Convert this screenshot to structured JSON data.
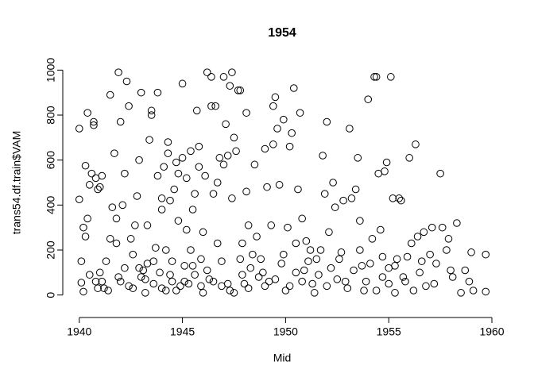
{
  "chart_data": {
    "type": "scatter",
    "title": "1954",
    "x_label": "Mid",
    "y_label": "trans54.df.train$VAM",
    "color": "#000000",
    "grid": false,
    "xlim": [
      1939.2,
      1960.5
    ],
    "xticks": [
      1940,
      1945,
      1950,
      1955,
      1960
    ],
    "ylim": [
      -40,
      1040
    ],
    "yticks": [
      0,
      200,
      400,
      600,
      800,
      1000
    ],
    "x": [
      1940.0,
      1940.0,
      1940.1,
      1940.1,
      1940.2,
      1940.2,
      1940.3,
      1940.3,
      1940.4,
      1940.4,
      1940.5,
      1940.5,
      1940.6,
      1940.7,
      1940.7,
      1940.8,
      1940.8,
      1940.9,
      1941.0,
      1941.0,
      1941.1,
      1941.2,
      1941.3,
      1941.5,
      1941.5,
      1941.6,
      1941.7,
      1941.8,
      1941.8,
      1941.9,
      1942.0,
      1942.0,
      1942.1,
      1942.2,
      1942.2,
      1942.3,
      1942.4,
      1942.5,
      1942.6,
      1942.6,
      1942.7,
      1942.8,
      1942.9,
      1943.0,
      1943.0,
      1943.1,
      1943.2,
      1943.3,
      1943.3,
      1943.4,
      1943.5,
      1943.5,
      1943.6,
      1943.7,
      1943.8,
      1943.8,
      1943.9,
      1944.0,
      1944.0,
      1944.1,
      1944.2,
      1944.2,
      1944.3,
      1944.3,
      1944.4,
      1944.5,
      1944.5,
      1944.6,
      1944.7,
      1944.8,
      1944.8,
      1944.9,
      1945.0,
      1945.0,
      1945.1,
      1945.2,
      1945.2,
      1945.3,
      1945.4,
      1945.4,
      1945.5,
      1945.6,
      1945.6,
      1945.7,
      1945.8,
      1945.8,
      1945.9,
      1946.0,
      1946.0,
      1946.1,
      1946.2,
      1946.3,
      1946.4,
      1946.4,
      1946.5,
      1946.6,
      1946.7,
      1946.7,
      1946.8,
      1946.9,
      1947.0,
      1947.0,
      1947.1,
      1947.2,
      1947.3,
      1947.3,
      1947.4,
      1947.4,
      1947.5,
      1947.6,
      1947.7,
      1947.8,
      1947.8,
      1947.9,
      1948.0,
      1948.1,
      1948.1,
      1948.2,
      1948.3,
      1948.5,
      1948.6,
      1948.7,
      1948.8,
      1949.0,
      1949.1,
      1949.2,
      1949.3,
      1949.4,
      1949.4,
      1949.5,
      1949.6,
      1949.7,
      1949.8,
      1949.9,
      1950.0,
      1950.1,
      1950.2,
      1950.3,
      1950.4,
      1950.5,
      1950.6,
      1950.7,
      1950.8,
      1950.9,
      1951.0,
      1951.2,
      1951.3,
      1951.5,
      1951.6,
      1951.8,
      1951.9,
      1952.0,
      1952.1,
      1952.3,
      1952.4,
      1952.6,
      1952.8,
      1952.9,
      1953.1,
      1953.2,
      1953.4,
      1953.5,
      1953.6,
      1953.7,
      1953.8,
      1954.0,
      1954.2,
      1954.3,
      1954.4,
      1954.5,
      1954.6,
      1954.7,
      1954.8,
      1954.9,
      1955.0,
      1955.1,
      1955.2,
      1955.3,
      1955.4,
      1955.5,
      1955.6,
      1955.8,
      1955.9,
      1956.0,
      1956.1,
      1956.3,
      1956.4,
      1956.5,
      1956.7,
      1956.8,
      1957.0,
      1957.1,
      1957.3,
      1957.5,
      1957.6,
      1957.9,
      1958.0,
      1958.1,
      1958.3,
      1958.5,
      1958.7,
      1958.9,
      1959.0,
      1959.1,
      1959.7,
      1959.7,
      1940.9,
      1941.1,
      1941.4,
      1941.9,
      1942.4,
      1942.9,
      1943.2,
      1943.6,
      1944.0,
      1944.4,
      1944.7,
      1945.1,
      1945.5,
      1945.9,
      1946.2,
      1946.5,
      1946.9,
      1947.2,
      1947.5,
      1947.9,
      1948.2,
      1948.4,
      1948.9,
      1949.0,
      1949.5,
      1949.9,
      1950.2,
      1950.5,
      1950.8,
      1951.1,
      1951.4,
      1951.7,
      1952.0,
      1952.2,
      1952.5,
      1952.7,
      1953.0,
      1953.3,
      1953.6,
      1953.9,
      1954.1,
      1954.4,
      1954.7,
      1955.0,
      1955.3,
      1955.7,
      1956.2,
      1956.6,
      1957.2,
      1957.8
    ],
    "values": [
      740,
      425,
      150,
      55,
      15,
      300,
      575,
      260,
      810,
      340,
      90,
      490,
      540,
      770,
      755,
      60,
      520,
      470,
      480,
      100,
      530,
      30,
      150,
      890,
      250,
      390,
      630,
      340,
      230,
      990,
      770,
      60,
      400,
      540,
      120,
      950,
      840,
      250,
      180,
      30,
      310,
      440,
      600,
      900,
      80,
      110,
      10,
      140,
      310,
      690,
      820,
      800,
      50,
      210,
      900,
      530,
      100,
      380,
      430,
      570,
      20,
      200,
      630,
      680,
      420,
      150,
      60,
      470,
      590,
      330,
      540,
      40,
      940,
      610,
      130,
      290,
      520,
      50,
      200,
      640,
      380,
      450,
      90,
      820,
      660,
      570,
      160,
      280,
      10,
      530,
      990,
      70,
      970,
      840,
      450,
      840,
      230,
      500,
      610,
      40,
      970,
      580,
      760,
      620,
      930,
      20,
      990,
      430,
      700,
      640,
      910,
      910,
      160,
      230,
      50,
      460,
      810,
      310,
      120,
      580,
      260,
      80,
      160,
      650,
      480,
      60,
      310,
      840,
      670,
      880,
      740,
      490,
      140,
      780,
      20,
      300,
      660,
      720,
      920,
      230,
      470,
      810,
      340,
      110,
      240,
      200,
      50,
      160,
      90,
      620,
      450,
      770,
      280,
      500,
      390,
      160,
      420,
      60,
      740,
      430,
      470,
      610,
      330,
      130,
      20,
      870,
      250,
      970,
      970,
      540,
      290,
      80,
      550,
      590,
      120,
      970,
      430,
      10,
      160,
      430,
      420,
      60,
      170,
      610,
      230,
      670,
      260,
      100,
      280,
      40,
      180,
      300,
      140,
      540,
      300,
      250,
      110,
      80,
      320,
      10,
      110,
      60,
      190,
      20,
      15,
      180,
      30,
      60,
      20,
      80,
      40,
      120,
      70,
      150,
      30,
      90,
      20,
      60,
      130,
      40,
      110,
      60,
      150,
      50,
      10,
      90,
      30,
      180,
      100,
      40,
      70,
      180,
      40,
      100,
      60,
      150,
      10,
      200,
      40,
      120,
      70,
      190,
      30,
      110,
      200,
      60,
      140,
      20,
      170,
      50,
      130,
      80,
      20,
      150,
      50,
      200
    ]
  }
}
